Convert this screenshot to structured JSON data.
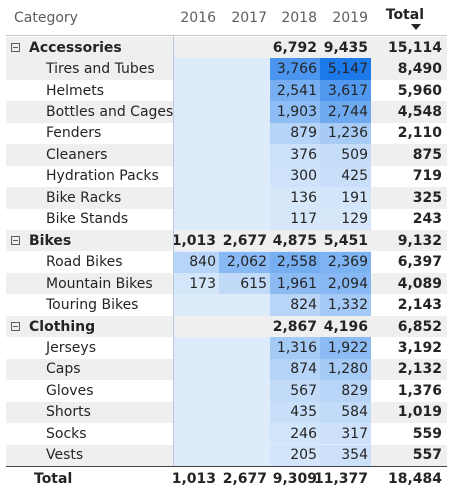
{
  "header": {
    "category": "Category",
    "years": [
      "2016",
      "2017",
      "2018",
      "2019"
    ],
    "total": "Total"
  },
  "rows": [
    {
      "type": "group",
      "label": "Accessories",
      "values": [
        "",
        "",
        "6,792",
        "9,435"
      ],
      "total": "15,114"
    },
    {
      "type": "item",
      "label": "Tires and Tubes",
      "values": [
        "",
        "",
        "3,766",
        "5,147"
      ],
      "total": "8,490"
    },
    {
      "type": "item",
      "label": "Helmets",
      "values": [
        "",
        "",
        "2,541",
        "3,617"
      ],
      "total": "5,960"
    },
    {
      "type": "item",
      "label": "Bottles and Cages",
      "values": [
        "",
        "",
        "1,903",
        "2,744"
      ],
      "total": "4,548"
    },
    {
      "type": "item",
      "label": "Fenders",
      "values": [
        "",
        "",
        "879",
        "1,236"
      ],
      "total": "2,110"
    },
    {
      "type": "item",
      "label": "Cleaners",
      "values": [
        "",
        "",
        "376",
        "509"
      ],
      "total": "875"
    },
    {
      "type": "item",
      "label": "Hydration Packs",
      "values": [
        "",
        "",
        "300",
        "425"
      ],
      "total": "719"
    },
    {
      "type": "item",
      "label": "Bike Racks",
      "values": [
        "",
        "",
        "136",
        "191"
      ],
      "total": "325"
    },
    {
      "type": "item",
      "label": "Bike Stands",
      "values": [
        "",
        "",
        "117",
        "129"
      ],
      "total": "243"
    },
    {
      "type": "group",
      "label": "Bikes",
      "values": [
        "1,013",
        "2,677",
        "4,875",
        "5,451"
      ],
      "total": "9,132"
    },
    {
      "type": "item",
      "label": "Road Bikes",
      "values": [
        "840",
        "2,062",
        "2,558",
        "2,369"
      ],
      "total": "6,397"
    },
    {
      "type": "item",
      "label": "Mountain Bikes",
      "values": [
        "173",
        "615",
        "1,961",
        "2,094"
      ],
      "total": "4,089"
    },
    {
      "type": "item",
      "label": "Touring Bikes",
      "values": [
        "",
        "",
        "824",
        "1,332"
      ],
      "total": "2,143"
    },
    {
      "type": "group",
      "label": "Clothing",
      "values": [
        "",
        "",
        "2,867",
        "4,196"
      ],
      "total": "6,852"
    },
    {
      "type": "item",
      "label": "Jerseys",
      "values": [
        "",
        "",
        "1,316",
        "1,922"
      ],
      "total": "3,192"
    },
    {
      "type": "item",
      "label": "Caps",
      "values": [
        "",
        "",
        "874",
        "1,280"
      ],
      "total": "2,132"
    },
    {
      "type": "item",
      "label": "Gloves",
      "values": [
        "",
        "",
        "567",
        "829"
      ],
      "total": "1,376"
    },
    {
      "type": "item",
      "label": "Shorts",
      "values": [
        "",
        "",
        "435",
        "584"
      ],
      "total": "1,019"
    },
    {
      "type": "item",
      "label": "Socks",
      "values": [
        "",
        "",
        "246",
        "317"
      ],
      "total": "559"
    },
    {
      "type": "item",
      "label": "Vests",
      "values": [
        "",
        "",
        "205",
        "354"
      ],
      "total": "557"
    }
  ],
  "grand_total": {
    "label": "Total",
    "values": [
      "1,013",
      "2,677",
      "9,309",
      "11,377"
    ],
    "total": "18,484"
  },
  "colors": {
    "band_fill": "#ddebfb",
    "heat_low": "#ddebfb",
    "heat_high": "#1c79ea",
    "group_shade": "#efefef",
    "text": "#252423",
    "header_text": "#605e5c"
  }
}
